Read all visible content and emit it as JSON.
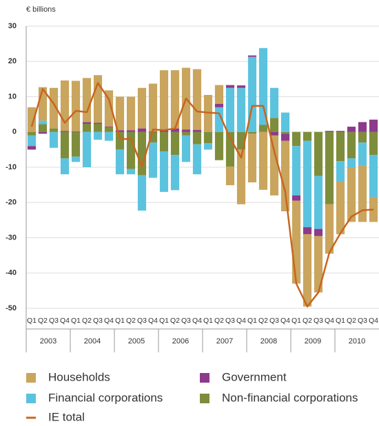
{
  "chart_data": {
    "type": "bar",
    "y_label": "€ billions",
    "categories": [
      "Q1",
      "Q2",
      "Q3",
      "Q4",
      "Q1",
      "Q2",
      "Q3",
      "Q4",
      "Q1",
      "Q2",
      "Q3",
      "Q4",
      "Q1",
      "Q2",
      "Q3",
      "Q4",
      "Q1",
      "Q2",
      "Q3",
      "Q4",
      "Q1",
      "Q2",
      "Q3",
      "Q4",
      "Q1",
      "Q2",
      "Q3",
      "Q4",
      "Q1",
      "Q2",
      "Q3",
      "Q4"
    ],
    "groups": [
      "2003",
      "2004",
      "2005",
      "2006",
      "2007",
      "2008",
      "2009",
      "2010"
    ],
    "ylim": [
      -50,
      30
    ],
    "yticks": [
      -50,
      -40,
      -30,
      -20,
      -10,
      0,
      10,
      20,
      30
    ],
    "grid": true,
    "series": [
      {
        "name": "Non-financial corporations",
        "color": "#7e8d3b",
        "values": [
          -1,
          2.2,
          1,
          -7.5,
          -7,
          2.3,
          2.3,
          1.3,
          -5,
          -10.5,
          -12.3,
          -3,
          -5.5,
          -6.5,
          -1,
          -3.5,
          -3.2,
          -8,
          -9.8,
          -5,
          -0.5,
          2,
          4,
          -0.5,
          -4,
          -2.5,
          -12.5,
          -20.5,
          -8.3,
          -7.5,
          -3,
          -6.5
        ]
      },
      {
        "name": "Financial corporations",
        "color": "#5cc3df",
        "values": [
          -3,
          1,
          -4.5,
          -4.5,
          -1.5,
          -10,
          -2.2,
          -2.5,
          -7,
          -1.5,
          -10,
          -10,
          -11.5,
          -10,
          -7.5,
          -8.5,
          -1.8,
          7,
          12.5,
          12.5,
          21.3,
          21.8,
          8.5,
          5.5,
          -14,
          -24.5,
          -15,
          0,
          -5.7,
          -2.5,
          -6.5,
          -12
        ]
      },
      {
        "name": "Government",
        "color": "#8c3a8c",
        "values": [
          -1,
          -0.5,
          0,
          0.3,
          0.2,
          0.5,
          0.3,
          0.2,
          0.5,
          0.5,
          1,
          0.2,
          0.7,
          1,
          0.7,
          0.6,
          0,
          1,
          0.8,
          0.7,
          0.4,
          0,
          -1,
          -2,
          -1.5,
          -2,
          -2,
          0.3,
          0.3,
          1.5,
          2.8,
          3.5
        ]
      },
      {
        "name": "Households",
        "color": "#c9a55d",
        "values": [
          7,
          9.5,
          11.5,
          14.3,
          14.3,
          12.5,
          13.5,
          10.3,
          9.5,
          9.5,
          11.5,
          13.5,
          16.8,
          16.5,
          17.5,
          17.2,
          10.5,
          5.3,
          -5.3,
          -15.5,
          -13.8,
          -16.4,
          -17,
          -20,
          -23.5,
          -20.5,
          -16,
          -14,
          -15,
          -15.5,
          -16,
          -7
        ]
      }
    ],
    "line": {
      "name": "IE total",
      "color": "#c8651f",
      "values": [
        1.5,
        12.2,
        8,
        2.6,
        6,
        5.6,
        13.9,
        9.3,
        -2,
        -2,
        -9.8,
        0.7,
        0.5,
        1,
        9.5,
        5.8,
        5.5,
        5.3,
        -1.8,
        -7.3,
        7.4,
        7.4,
        -5.5,
        -17,
        -43,
        -49.5,
        -45.5,
        -34.2,
        -28.7,
        -24,
        -22.2,
        -22
      ]
    }
  }
}
